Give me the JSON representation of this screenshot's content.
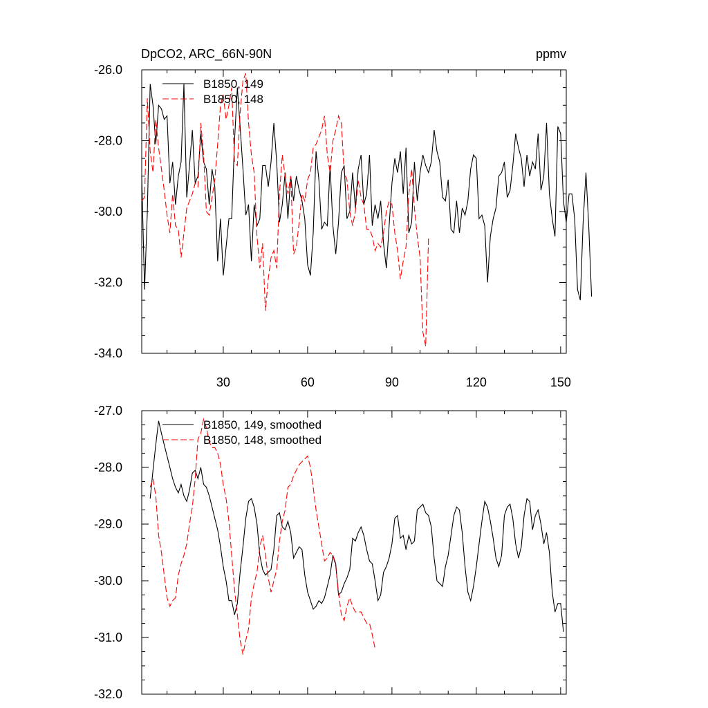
{
  "chart_data": [
    {
      "type": "line",
      "title": "DpCO2, ARC_66N-90N",
      "units": "ppmv",
      "xlim": [
        1,
        152
      ],
      "ylim": [
        -34,
        -26
      ],
      "x_ticks": [
        30,
        60,
        90,
        120,
        150
      ],
      "x_tick_labels": [
        "30",
        "60",
        "90",
        "120",
        "150"
      ],
      "y_ticks": [
        -34,
        -32,
        -30,
        -28,
        -26
      ],
      "y_tick_labels": [
        "-34.0",
        "-32.0",
        "-30.0",
        "-28.0",
        "-26.0"
      ],
      "legend": "top-left",
      "series": [
        {
          "name": "B1850, 149",
          "color": "#000000",
          "dash": "solid",
          "y": [
            -29.0,
            -32.2,
            -30.0,
            -26.4,
            -27.0,
            -28.1,
            -27.0,
            -27.1,
            -27.4,
            -27.3,
            -29.2,
            -28.6,
            -29.8,
            -29.0,
            -28.6,
            -26.4,
            -29.6,
            -28.7,
            -27.7,
            -29.2,
            -29.0,
            -27.8,
            -28.6,
            -28.8,
            -29.8,
            -28.8,
            -29.3,
            -31.4,
            -30.2,
            -31.8,
            -31.0,
            -30.2,
            -30.2,
            -28.0,
            -26.5,
            -27.6,
            -28.8,
            -30.1,
            -29.8,
            -31.4,
            -29.8,
            -30.4,
            -30.2,
            -28.7,
            -28.7,
            -29.3,
            -28.6,
            -27.5,
            -28.6,
            -30.3,
            -29.8,
            -28.9,
            -30.2,
            -29.0,
            -29.7,
            -29.0,
            -29.4,
            -29.7,
            -30.2,
            -31.5,
            -31.8,
            -30.6,
            -28.3,
            -29.1,
            -30.5,
            -30.3,
            -30.4,
            -28.7,
            -30.4,
            -31.2,
            -30.3,
            -28.9,
            -28.7,
            -30.2,
            -30.0,
            -28.9,
            -29.9,
            -28.8,
            -28.4,
            -29.8,
            -29.5,
            -28.4,
            -30.4,
            -29.8,
            -30.2,
            -29.7,
            -30.9,
            -31.6,
            -30.4,
            -29.2,
            -28.5,
            -28.9,
            -28.3,
            -29.5,
            -28.2,
            -30.6,
            -30.3,
            -28.6,
            -29.7,
            -28.9,
            -28.4,
            -28.7,
            -28.9,
            -28.6,
            -27.7,
            -28.3,
            -28.6,
            -29.6,
            -29.7,
            -29.1,
            -30.5,
            -30.6,
            -29.7,
            -30.6,
            -29.9,
            -30.1,
            -29.7,
            -28.8,
            -28.4,
            -28.5,
            -30.2,
            -30.1,
            -30.4,
            -32.0,
            -30.7,
            -30.2,
            -29.9,
            -29.0,
            -28.9,
            -28.6,
            -29.6,
            -29.4,
            -28.7,
            -27.8,
            -28.2,
            -28.5,
            -29.3,
            -28.4,
            -29.0,
            -28.6,
            -28.8,
            -27.8,
            -29.4,
            -29.0,
            -27.5,
            -29.5,
            -30.2,
            -30.7,
            -27.6,
            -27.8,
            -29.7,
            -30.3,
            -29.5,
            -29.5,
            -30.2,
            -32.2,
            -32.5,
            -30.3,
            -28.9,
            -30.4,
            -32.4
          ]
        },
        {
          "name": "B1850, 148",
          "color": "#ff0000",
          "dash": "dashed",
          "y": [
            -29.7,
            -29.6,
            -26.8,
            -28.3,
            -28.9,
            -27.4,
            -28.2,
            -28.8,
            -29.4,
            -30.1,
            -30.6,
            -29.5,
            -30.4,
            -30.5,
            -31.3,
            -30.6,
            -29.9,
            -29.7,
            -29.5,
            -29.2,
            -29.3,
            -27.5,
            -28.4,
            -30.0,
            -30.1,
            -29.6,
            -29.1,
            -28.1,
            -27.0,
            -26.7,
            -27.4,
            -27.0,
            -26.5,
            -28.6,
            -28.7,
            -27.2,
            -26.3,
            -26.1,
            -27.5,
            -28.4,
            -28.9,
            -30.7,
            -31.6,
            -30.9,
            -32.8,
            -31.9,
            -31.3,
            -31.1,
            -31.6,
            -29.5,
            -28.4,
            -29.0,
            -29.5,
            -29.0,
            -31.2,
            -31.0,
            -30.3,
            -29.5,
            -29.7,
            -29.1,
            -28.9,
            -28.2,
            -28.1,
            -27.9,
            -27.7,
            -27.3,
            -28.4,
            -28.9,
            -28.0,
            -27.7,
            -27.3,
            -27.5,
            -28.9,
            -29.1,
            -30.0,
            -30.4,
            -30.0,
            -29.1,
            -29.6,
            -29.8,
            -30.5,
            -30.5,
            -30.7,
            -31.1,
            -30.9,
            -31.0,
            -30.6,
            -30.0,
            -29.7,
            -29.8,
            -30.6,
            -31.1,
            -31.9,
            -31.4,
            -31.0,
            -29.5,
            -28.8,
            -29.9,
            -30.7,
            -31.3,
            -33.4,
            -33.8,
            -30.7
          ]
        }
      ]
    },
    {
      "type": "line",
      "title": "",
      "xlim": [
        1,
        152
      ],
      "ylim": [
        -32,
        -27
      ],
      "y_ticks": [
        -32,
        -31,
        -30,
        -29,
        -28,
        -27
      ],
      "y_tick_labels": [
        "-32.0",
        "-31.0",
        "-30.0",
        "-29.0",
        "-28.0",
        "-27.0"
      ],
      "legend": "top-left",
      "series": [
        {
          "name": "B1850, 149, smoothed",
          "color": "#000000",
          "dash": "solid",
          "y": [
            -28.55,
            -28.05,
            -27.6,
            -27.18,
            -27.4,
            -27.6,
            -27.8,
            -28.0,
            -28.2,
            -28.35,
            -28.45,
            -28.3,
            -28.5,
            -28.6,
            -28.4,
            -28.1,
            -28.05,
            -28.2,
            -28.0,
            -28.3,
            -28.35,
            -28.5,
            -28.7,
            -28.9,
            -29.1,
            -29.4,
            -29.75,
            -30.0,
            -30.35,
            -30.35,
            -30.6,
            -30.4,
            -29.85,
            -29.4,
            -28.9,
            -28.6,
            -28.55,
            -28.7,
            -29.0,
            -29.55,
            -29.8,
            -29.9,
            -29.85,
            -29.8,
            -29.45,
            -28.85,
            -28.8,
            -29.05,
            -29.1,
            -28.95,
            -29.15,
            -29.6,
            -29.5,
            -29.4,
            -29.45,
            -29.9,
            -30.2,
            -30.35,
            -30.5,
            -30.45,
            -30.35,
            -30.4,
            -30.3,
            -30.1,
            -29.9,
            -29.55,
            -29.7,
            -30.25,
            -30.2,
            -30.05,
            -29.95,
            -29.8,
            -29.25,
            -29.3,
            -29.15,
            -29.05,
            -29.2,
            -29.45,
            -29.65,
            -29.7,
            -30.0,
            -30.35,
            -30.25,
            -29.85,
            -29.75,
            -29.6,
            -29.35,
            -28.9,
            -28.85,
            -29.25,
            -29.2,
            -29.45,
            -29.2,
            -29.35,
            -29.3,
            -28.75,
            -28.7,
            -28.65,
            -28.8,
            -28.85,
            -29.05,
            -29.6,
            -30.0,
            -30.05,
            -30.1,
            -29.75,
            -29.55,
            -29.2,
            -28.85,
            -28.7,
            -28.75,
            -29.15,
            -29.75,
            -30.2,
            -30.35,
            -30.1,
            -29.75,
            -29.35,
            -28.95,
            -28.6,
            -28.7,
            -28.95,
            -29.25,
            -29.6,
            -29.75,
            -29.55,
            -28.85,
            -28.7,
            -28.65,
            -28.9,
            -29.35,
            -29.6,
            -29.4,
            -28.85,
            -28.55,
            -28.6,
            -29.1,
            -28.85,
            -28.75,
            -29.0,
            -29.35,
            -29.15,
            -29.5,
            -30.2,
            -30.55,
            -30.4,
            -30.4,
            -30.9
          ]
        },
        {
          "name": "B1850, 148, smoothed",
          "color": "#ff0000",
          "dash": "dashed",
          "y": [
            -28.35,
            -28.2,
            -28.5,
            -29.2,
            -29.5,
            -29.9,
            -30.3,
            -30.45,
            -30.35,
            -30.3,
            -29.9,
            -29.7,
            -29.55,
            -29.35,
            -29.0,
            -28.7,
            -28.2,
            -27.5,
            -27.4,
            -27.15,
            -27.3,
            -27.55,
            -27.65,
            -27.65,
            -27.75,
            -27.95,
            -28.3,
            -28.55,
            -28.95,
            -29.55,
            -30.15,
            -30.6,
            -31.05,
            -31.3,
            -31.05,
            -30.85,
            -30.3,
            -30.05,
            -29.85,
            -29.4,
            -29.2,
            -29.55,
            -29.95,
            -30.2,
            -30.0,
            -29.8,
            -29.3,
            -28.95,
            -28.75,
            -28.35,
            -28.3,
            -28.15,
            -28.05,
            -27.95,
            -27.9,
            -27.85,
            -27.8,
            -28.0,
            -28.35,
            -28.75,
            -29.05,
            -29.35,
            -29.65,
            -29.6,
            -29.5,
            -29.55,
            -29.75,
            -30.2,
            -30.6,
            -30.7,
            -30.45,
            -30.3,
            -30.45,
            -30.55,
            -30.55,
            -30.55,
            -30.65,
            -30.75,
            -30.75,
            -30.95,
            -31.2
          ]
        }
      ]
    }
  ]
}
